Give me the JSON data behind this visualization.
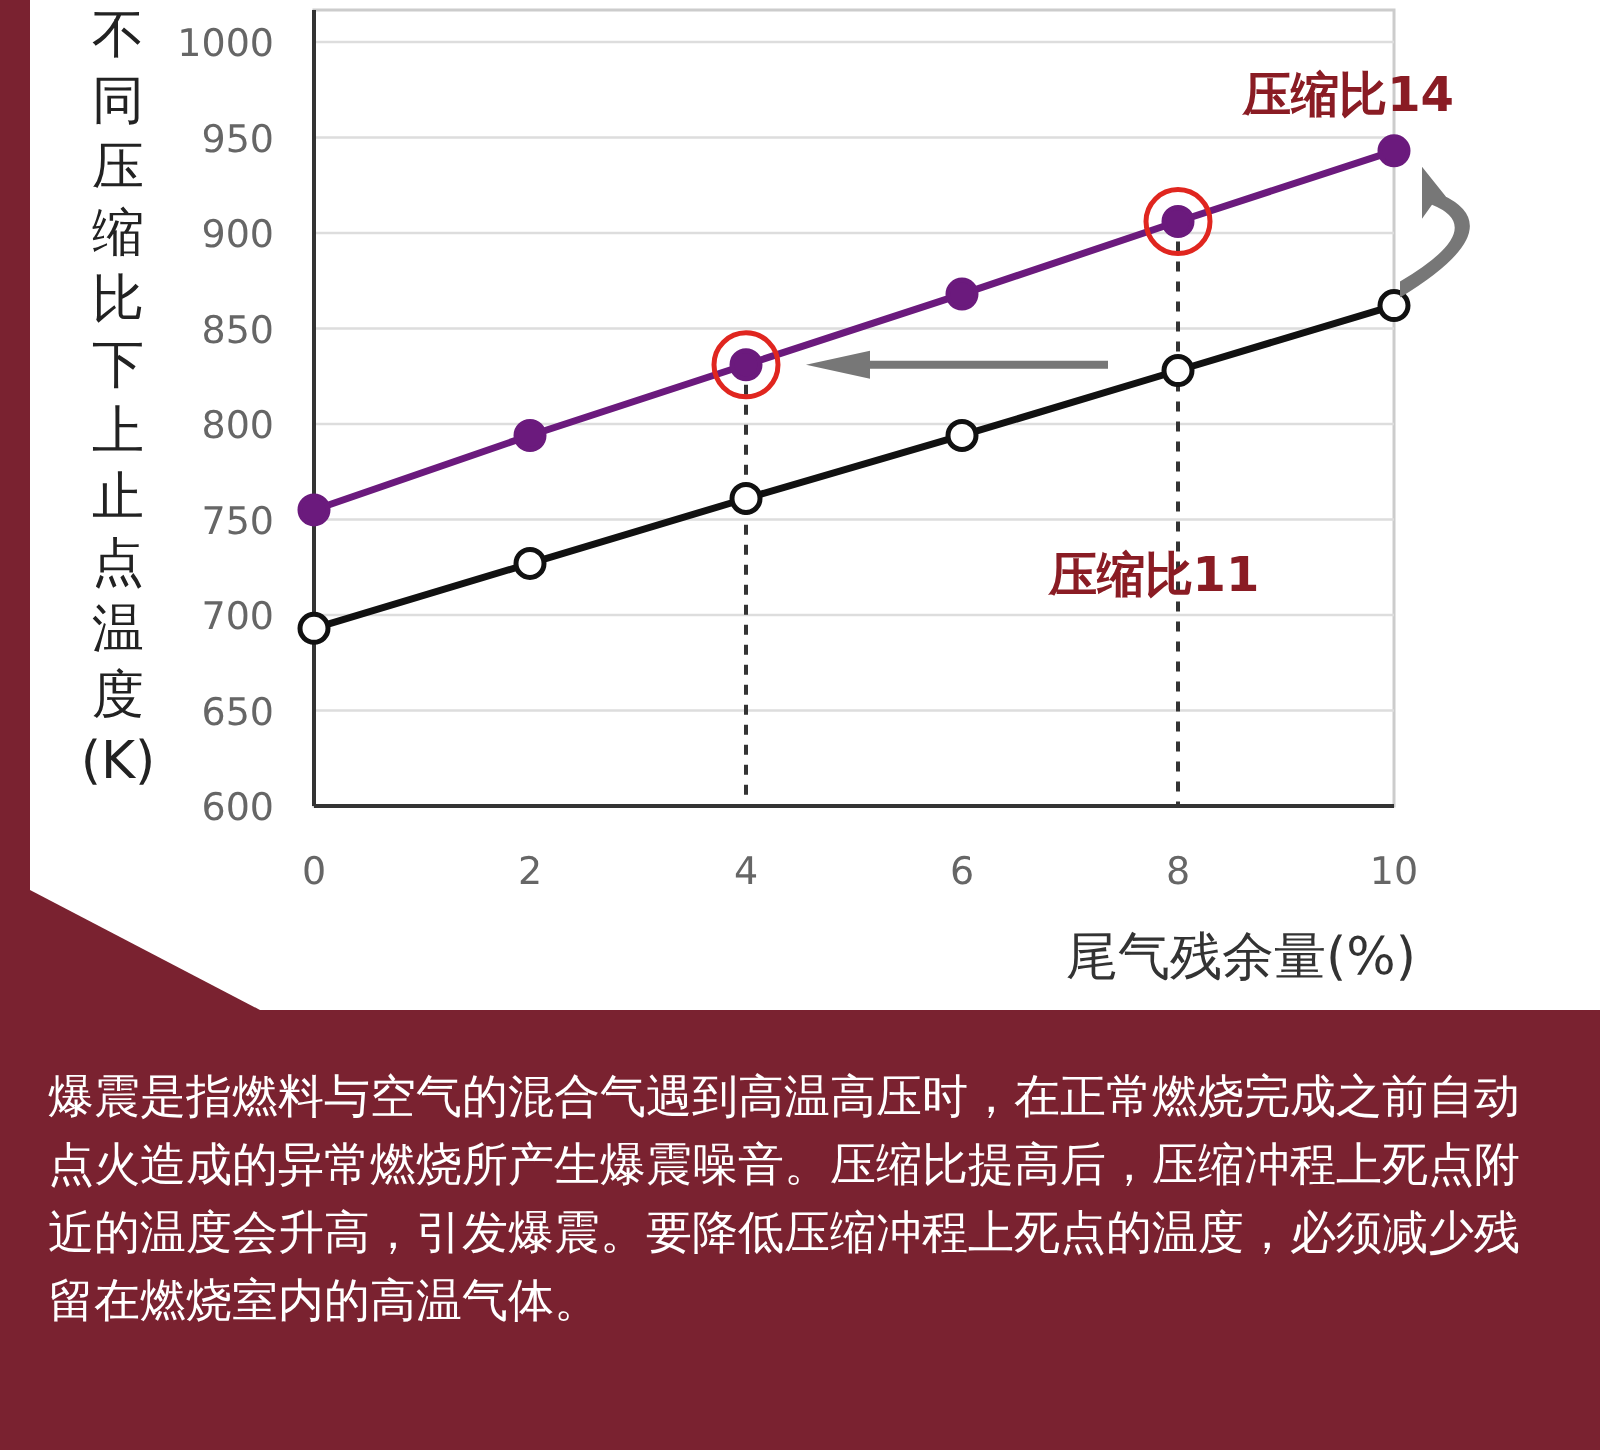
{
  "chart_data": {
    "type": "line",
    "xlabel": "尾气残余量(%)",
    "ylabel": "不同压缩比下上止点温度(K)",
    "x": [
      0,
      2,
      4,
      6,
      8,
      10
    ],
    "series": [
      {
        "name": "压缩比14",
        "color": "#6b1a7d",
        "values": [
          755,
          794,
          831,
          868,
          906,
          943
        ]
      },
      {
        "name": "压缩比11",
        "color": "#111111",
        "values": [
          693,
          727,
          761,
          794,
          828,
          862
        ]
      }
    ],
    "xlim": [
      0,
      10
    ],
    "ylim": [
      600,
      1000
    ],
    "xticks": [
      0,
      2,
      4,
      6,
      8,
      10
    ],
    "yticks": [
      600,
      650,
      700,
      750,
      800,
      850,
      900,
      950,
      1000
    ],
    "grid": "y",
    "marker": "circle",
    "line_style": "solid",
    "ref_lines": [
      {
        "axis": "x",
        "value": 4,
        "line_style": "dashed",
        "color": "#333333"
      },
      {
        "axis": "x",
        "value": 8,
        "line_style": "dashed",
        "color": "#333333"
      }
    ],
    "annotations": [
      "爆震是指燃料与空气的混合气遇到高温高压时，在正常燃烧完成之前自动点火造成的异常燃烧所产生爆震噪音。压缩比提高后，压缩冲程上死点附近的温度会升高，引发爆震。要降低压缩冲程上死点的温度，必须减少残留在燃烧室内的高温气体。"
    ]
  }
}
